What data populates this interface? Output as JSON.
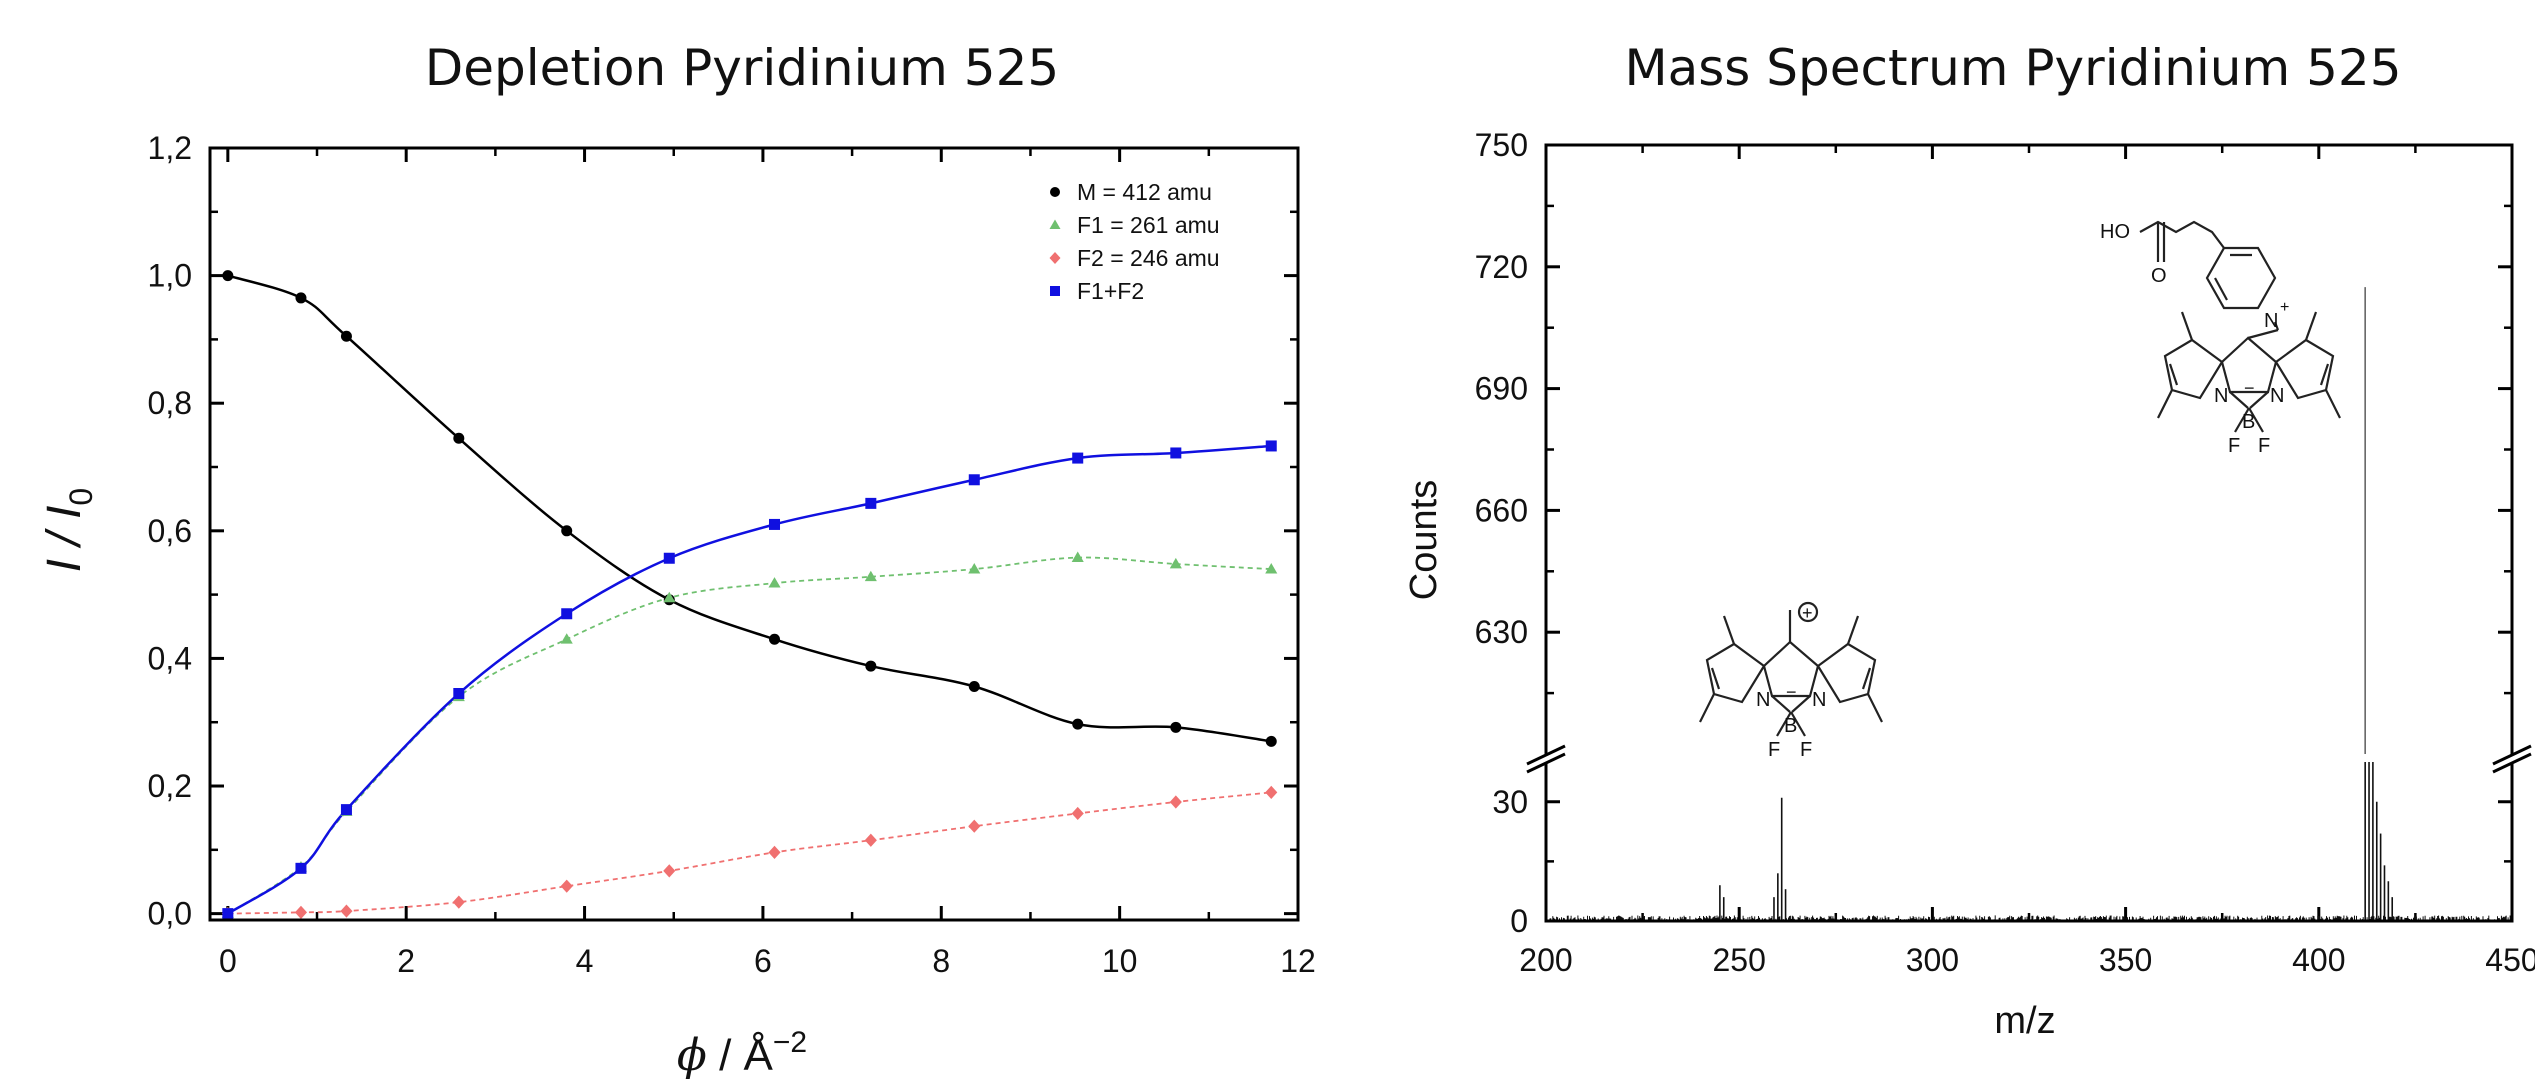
{
  "chart_data": [
    {
      "type": "scatter",
      "title": "Depletion Pyridinium 525",
      "ylabel": "I / I0",
      "ylabel_main": "I / I",
      "ylabel_sub": "0",
      "xlabel": "ϕ / Å−2",
      "xlabel_phi": "ϕ",
      "xlabel_unit": " / Å",
      "xlabel_exp": "−2",
      "xlim": [
        -0.2,
        12
      ],
      "ylim": [
        -0.01,
        1.2
      ],
      "x_ticks": [
        "0",
        "2",
        "4",
        "6",
        "8",
        "10",
        "12"
      ],
      "y_ticks": [
        "0,0",
        "0,2",
        "0,4",
        "0,6",
        "0,8",
        "1,0",
        "1,2"
      ],
      "legend_position": "top-right",
      "grid": false,
      "series": [
        {
          "name": "M = 412 amu",
          "marker": "circle",
          "color": "#000000",
          "fit": "solid",
          "x": [
            0,
            0.82,
            1.33,
            2.59,
            3.8,
            4.95,
            6.13,
            7.21,
            8.37,
            9.53,
            10.63,
            11.7
          ],
          "y": [
            1.0,
            0.965,
            0.905,
            0.745,
            0.6,
            0.492,
            0.43,
            0.388,
            0.356,
            0.297,
            0.292,
            0.27
          ]
        },
        {
          "name": "F1 = 261 amu",
          "marker": "triangle",
          "color": "#6fc06f",
          "fit": "dashed",
          "x": [
            0,
            0.82,
            1.33,
            2.59,
            3.8,
            4.95,
            6.13,
            7.21,
            8.37,
            9.53,
            10.63,
            11.7
          ],
          "y": [
            0.0,
            0.073,
            0.16,
            0.34,
            0.43,
            0.495,
            0.518,
            0.528,
            0.54,
            0.558,
            0.548,
            0.54
          ]
        },
        {
          "name": "F2 = 246 amu",
          "marker": "diamond",
          "color": "#f07070",
          "fit": "dashed",
          "x": [
            0,
            0.82,
            1.33,
            2.59,
            3.8,
            4.95,
            6.13,
            7.21,
            8.37,
            9.53,
            10.63,
            11.7
          ],
          "y": [
            0.0,
            0.002,
            0.004,
            0.018,
            0.043,
            0.067,
            0.096,
            0.115,
            0.137,
            0.157,
            0.175,
            0.19
          ]
        },
        {
          "name": "F1+F2",
          "marker": "square",
          "color": "#1010e0",
          "fit": "solid",
          "x": [
            0,
            0.82,
            1.33,
            2.59,
            3.8,
            4.95,
            6.13,
            7.21,
            8.37,
            9.53,
            10.63,
            11.7
          ],
          "y": [
            0.0,
            0.071,
            0.163,
            0.345,
            0.47,
            0.557,
            0.61,
            0.643,
            0.68,
            0.714,
            0.722,
            0.733
          ]
        }
      ]
    },
    {
      "type": "line",
      "title": "Mass Spectrum Pyridinium 525",
      "xlabel": "m/z",
      "ylabel": "Counts",
      "xlim": [
        200,
        450
      ],
      "y_axis_break": true,
      "ylim_lower": [
        0,
        40
      ],
      "ylim_upper": [
        600,
        750
      ],
      "x_ticks": [
        "200",
        "250",
        "300",
        "350",
        "400",
        "450"
      ],
      "y_ticks_lower": [
        "0",
        "30"
      ],
      "y_ticks_upper": [
        "630",
        "660",
        "690",
        "720",
        "750"
      ],
      "grid": false,
      "peaks": [
        {
          "mz": 245,
          "counts": 9
        },
        {
          "mz": 246,
          "counts": 6
        },
        {
          "mz": 259,
          "counts": 6
        },
        {
          "mz": 260,
          "counts": 12
        },
        {
          "mz": 261,
          "counts": 31
        },
        {
          "mz": 262,
          "counts": 8
        },
        {
          "mz": 412,
          "counts": 715
        },
        {
          "mz": 413,
          "counts": 40
        },
        {
          "mz": 414,
          "counts": 40
        },
        {
          "mz": 415,
          "counts": 30
        },
        {
          "mz": 416,
          "counts": 22
        },
        {
          "mz": 417,
          "counts": 14
        },
        {
          "mz": 418,
          "counts": 10
        },
        {
          "mz": 419,
          "counts": 6
        }
      ],
      "structure_labels": {
        "upper": {
          "ho": "HO",
          "o": "O",
          "n_plus": "N",
          "n": "N",
          "n2": "N",
          "b": "B",
          "f1": "F",
          "f2": "F",
          "plus": "+",
          "minus": "−"
        },
        "lower": {
          "charge": "+",
          "n": "N",
          "n2": "N",
          "b": "B",
          "f1": "F",
          "f2": "F",
          "minus": "−"
        }
      }
    }
  ]
}
